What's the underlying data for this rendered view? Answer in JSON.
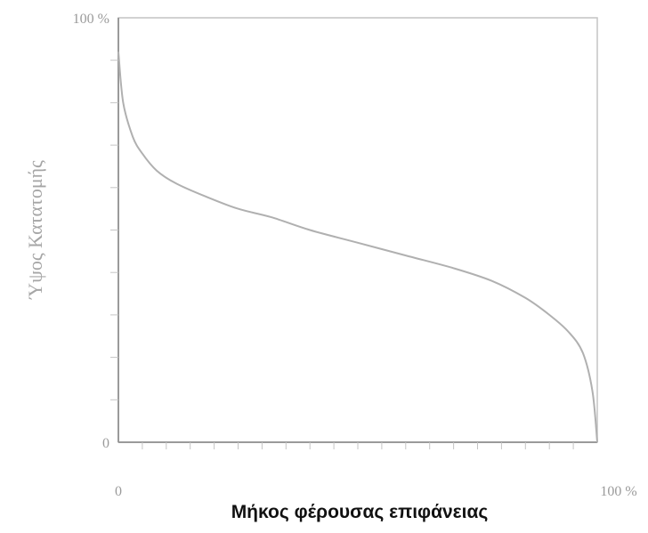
{
  "chart_data": {
    "type": "line",
    "title": "",
    "xlabel": "Μήκος φέρουσας επιφάνειας",
    "ylabel": "Ύψος Κατατομής",
    "x_ticks": [
      {
        "value": 0,
        "label": "0"
      },
      {
        "value": 100,
        "label": "100 %"
      }
    ],
    "y_ticks": [
      {
        "value": 0,
        "label": "0"
      },
      {
        "value": 100,
        "label": "100 %"
      }
    ],
    "xlim": [
      0,
      100
    ],
    "ylim": [
      0,
      100
    ],
    "grid": false,
    "legend": "none",
    "colors": {
      "line": "#b0b0b0",
      "frame": "#c4c4c4",
      "axis": "#9a9a9a"
    },
    "series": [
      {
        "values": [
          {
            "x": 0,
            "y": 92
          },
          {
            "x": 1,
            "y": 80
          },
          {
            "x": 3,
            "y": 72
          },
          {
            "x": 5,
            "y": 68
          },
          {
            "x": 8,
            "y": 64
          },
          {
            "x": 12,
            "y": 61
          },
          {
            "x": 18,
            "y": 58
          },
          {
            "x": 25,
            "y": 55
          },
          {
            "x": 32,
            "y": 53
          },
          {
            "x": 40,
            "y": 50
          },
          {
            "x": 50,
            "y": 47
          },
          {
            "x": 60,
            "y": 44
          },
          {
            "x": 70,
            "y": 41
          },
          {
            "x": 78,
            "y": 38
          },
          {
            "x": 85,
            "y": 34
          },
          {
            "x": 90,
            "y": 30
          },
          {
            "x": 94,
            "y": 26
          },
          {
            "x": 97,
            "y": 21
          },
          {
            "x": 99,
            "y": 12
          },
          {
            "x": 100,
            "y": 0
          }
        ]
      }
    ]
  }
}
